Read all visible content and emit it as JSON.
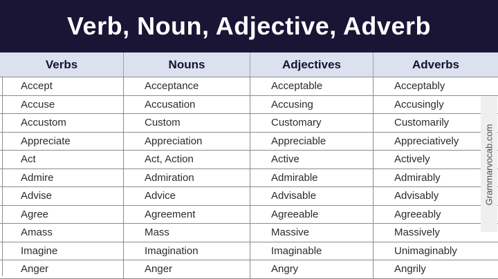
{
  "title": "Verb, Noun, Adjective, Adverb",
  "watermark": "Grammarvocab.com",
  "colors": {
    "navy": "#1a1435",
    "header_bg": "#dbe1ef",
    "header_text": "#15132e",
    "line": "#8a8a8a",
    "body_text": "#2b2b2b",
    "watermark_bg": "#efefef",
    "watermark_text": "#4f4f4f"
  },
  "table": {
    "columns": [
      "Verbs",
      "Nouns",
      "Adjectives",
      "Adverbs"
    ],
    "rows": [
      [
        "Accept",
        "Acceptance",
        "Acceptable",
        "Acceptably"
      ],
      [
        "Accuse",
        "Accusation",
        "Accusing",
        "Accusingly"
      ],
      [
        "Accustom",
        "Custom",
        "Customary",
        "Customarily"
      ],
      [
        "Appreciate",
        "Appreciation",
        "Appreciable",
        "Appreciatively"
      ],
      [
        "Act",
        "Act, Action",
        "Active",
        "Actively"
      ],
      [
        "Admire",
        "Admiration",
        "Admirable",
        "Admirably"
      ],
      [
        "Advise",
        "Advice",
        "Advisable",
        "Advisably"
      ],
      [
        "Agree",
        "Agreement",
        "Agreeable",
        "Agreeably"
      ],
      [
        "Amass",
        "Mass",
        "Massive",
        "Massively"
      ],
      [
        "Imagine",
        "Imagination",
        "Imaginable",
        "Unimaginably"
      ],
      [
        "Anger",
        "Anger",
        "Angry",
        "Angrily"
      ]
    ]
  }
}
